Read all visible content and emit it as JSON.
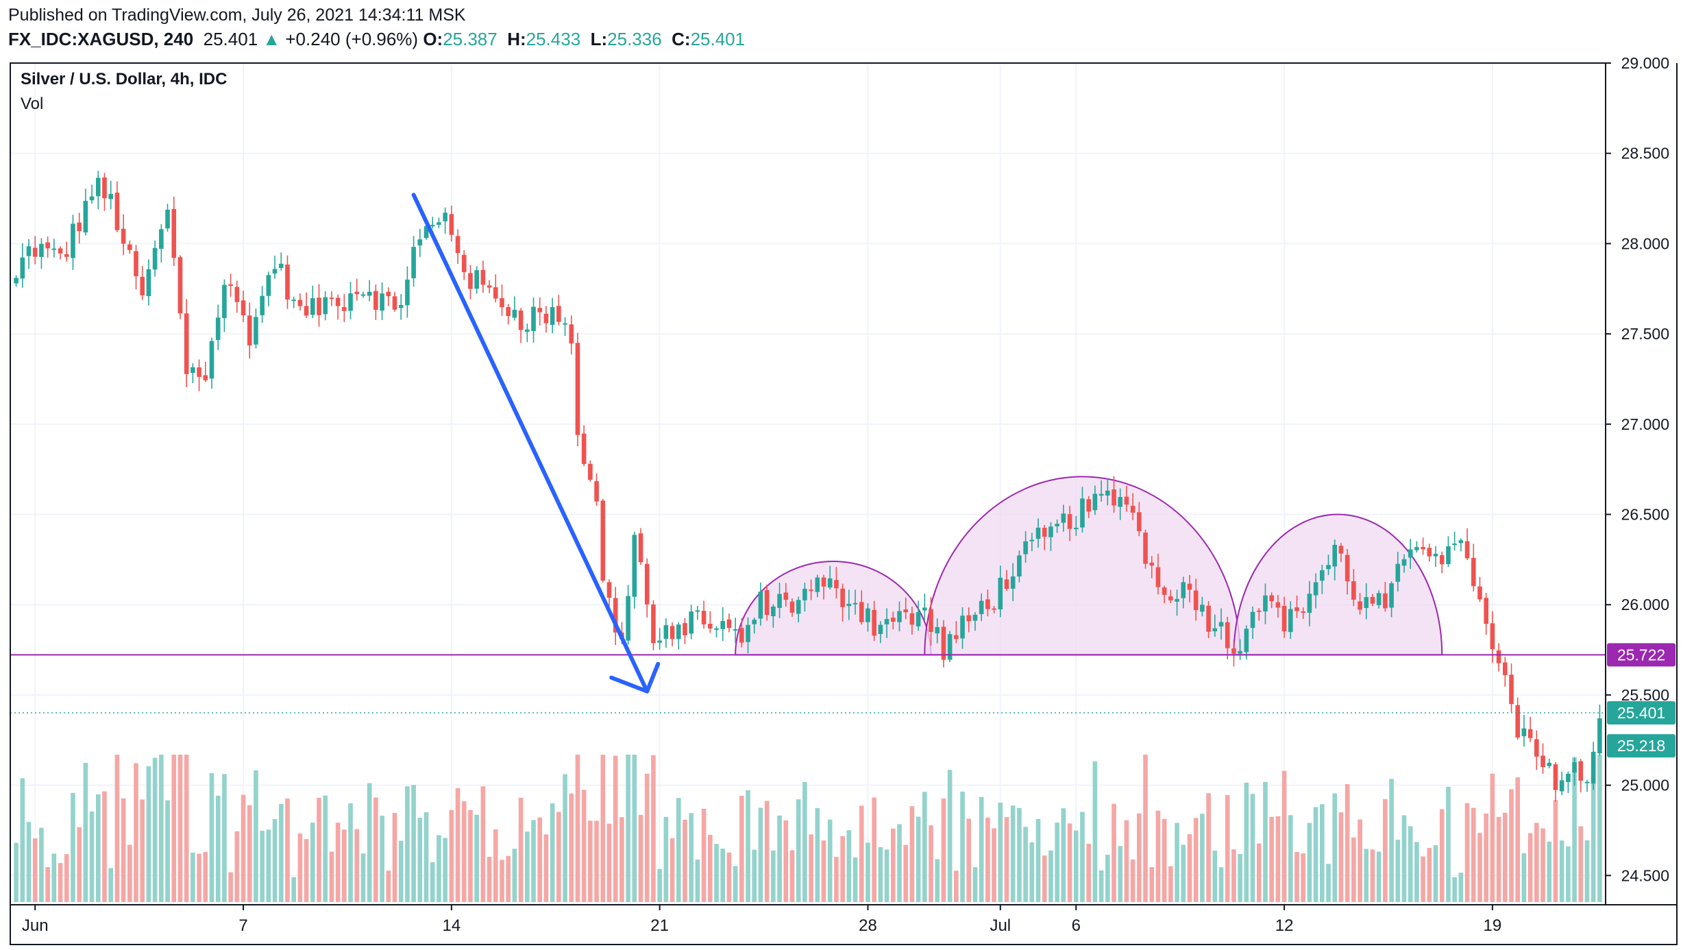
{
  "header": {
    "published": "Published on TradingView.com, July 26, 2021 14:34:11 MSK",
    "symbol": "FX_IDC:XAGUSD, 240",
    "last": "25.401",
    "change": "+0.240 (+0.96%)",
    "open_label": "O:",
    "open": "25.387",
    "high_label": "H:",
    "high": "25.433",
    "low_label": "L:",
    "low": "25.336",
    "close_label": "C:",
    "close": "25.401",
    "up_arrow": "▲"
  },
  "pane": {
    "title": "Silver / U.S. Dollar, 4h, IDC",
    "volume_label": "Vol"
  },
  "chart_data": {
    "type": "candlestick",
    "title": "Silver / U.S. Dollar, 4h, IDC",
    "y_axis": {
      "ticks": [
        "29.000",
        "28.500",
        "28.000",
        "27.500",
        "27.000",
        "26.500",
        "26.000",
        "25.500",
        "25.000",
        "24.500"
      ],
      "range": [
        24.32,
        29.0
      ]
    },
    "x_axis": {
      "tick_labels": [
        "Jun",
        "7",
        "14",
        "21",
        "28",
        "Jul",
        "6",
        "12",
        "19"
      ],
      "tick_index": [
        3,
        36,
        69,
        102,
        135,
        156,
        168,
        201,
        234
      ],
      "bar_count": 252
    },
    "price_labels": [
      {
        "value": 25.722,
        "text": "25.722",
        "color": "#9c27b0"
      },
      {
        "value": 25.401,
        "text": "25.401",
        "color": "#26a69a"
      },
      {
        "value": 25.218,
        "text": "25.218",
        "color": "#26a69a"
      }
    ],
    "horizontal_line": 25.722,
    "waypoints": [
      [
        0,
        27.8
      ],
      [
        2,
        27.95
      ],
      [
        8,
        27.95
      ],
      [
        12,
        28.3
      ],
      [
        15,
        28.25
      ],
      [
        18,
        27.9
      ],
      [
        20,
        27.7
      ],
      [
        24,
        28.2
      ],
      [
        27,
        27.3
      ],
      [
        30,
        27.3
      ],
      [
        33,
        27.8
      ],
      [
        37,
        27.5
      ],
      [
        41,
        27.9
      ],
      [
        45,
        27.6
      ],
      [
        52,
        27.7
      ],
      [
        56,
        27.75
      ],
      [
        60,
        27.6
      ],
      [
        63,
        27.95
      ],
      [
        66,
        28.1
      ],
      [
        68,
        28.15
      ],
      [
        72,
        27.8
      ],
      [
        76,
        27.7
      ],
      [
        80,
        27.6
      ],
      [
        86,
        27.6
      ],
      [
        88,
        27.5
      ],
      [
        89,
        26.9
      ],
      [
        92,
        26.6
      ],
      [
        93,
        26.1
      ],
      [
        96,
        25.8
      ],
      [
        98,
        26.4
      ],
      [
        101,
        25.8
      ],
      [
        104,
        25.8
      ],
      [
        107,
        25.95
      ],
      [
        112,
        25.85
      ],
      [
        115,
        25.8
      ],
      [
        118,
        26.0
      ],
      [
        122,
        26.0
      ],
      [
        127,
        26.1
      ],
      [
        132,
        26.05
      ],
      [
        136,
        25.9
      ],
      [
        144,
        25.95
      ],
      [
        147,
        25.75
      ],
      [
        151,
        25.9
      ],
      [
        156,
        26.1
      ],
      [
        162,
        26.35
      ],
      [
        170,
        26.55
      ],
      [
        176,
        26.6
      ],
      [
        181,
        26.1
      ],
      [
        185,
        26.1
      ],
      [
        190,
        25.9
      ],
      [
        193,
        25.75
      ],
      [
        197,
        26.05
      ],
      [
        202,
        25.9
      ],
      [
        209,
        26.3
      ],
      [
        213,
        26.0
      ],
      [
        217,
        26.0
      ],
      [
        222,
        26.35
      ],
      [
        226,
        26.3
      ],
      [
        230,
        26.3
      ],
      [
        232,
        26.0
      ],
      [
        234,
        25.7
      ],
      [
        236,
        25.6
      ],
      [
        238,
        25.3
      ],
      [
        241,
        25.15
      ],
      [
        244,
        25.05
      ],
      [
        247,
        25.1
      ],
      [
        249,
        25.0
      ],
      [
        251,
        25.4
      ]
    ],
    "arcs": [
      {
        "from_index": 114,
        "to_index": 145,
        "base": 25.722,
        "peak": 26.24
      },
      {
        "from_index": 144,
        "to_index": 194,
        "base": 25.722,
        "peak": 26.71
      },
      {
        "from_index": 193,
        "to_index": 226,
        "base": 25.722,
        "peak": 26.5
      }
    ],
    "trend_arrow": {
      "from": [
        63,
        28.27
      ],
      "to": [
        100,
        25.52
      ]
    },
    "colors": {
      "up": "#26a69a",
      "down": "#ef5350",
      "vol_up": "#93d3cc",
      "vol_down": "#f5a7a5",
      "purple": "#9c27b0",
      "arc_fill": "#f0d9f2",
      "arrow": "#2962ff",
      "grid": "#f0f3fa"
    }
  }
}
